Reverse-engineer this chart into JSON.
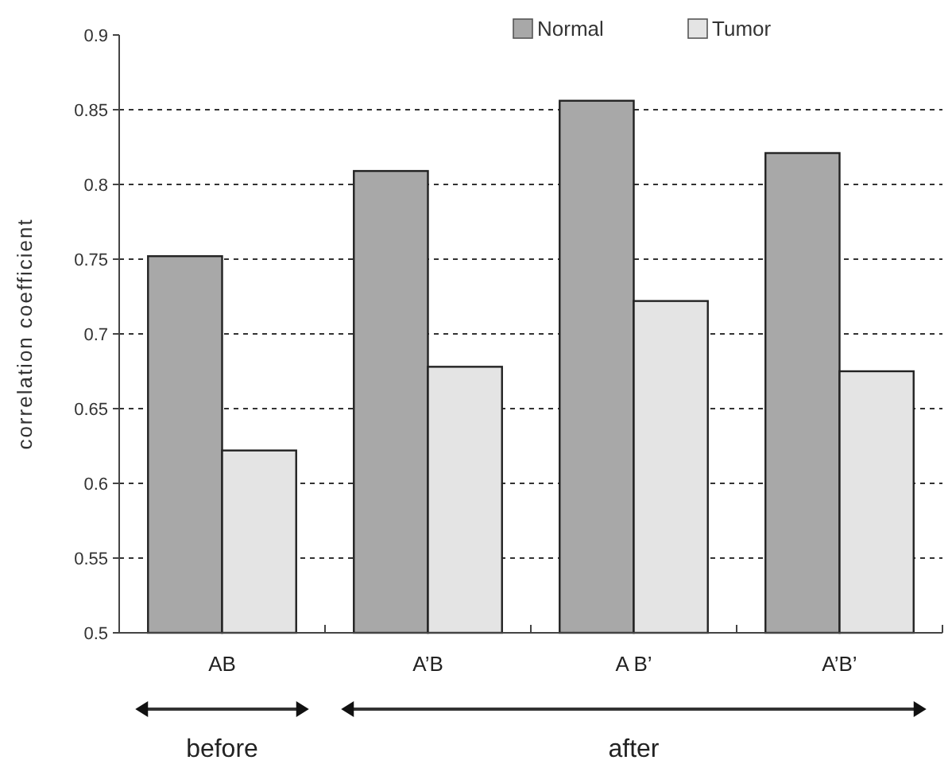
{
  "chart_data": {
    "type": "bar",
    "ylabel": "correlation coefficient",
    "categories": [
      "AB",
      "A’B",
      "A B’",
      "A’B’"
    ],
    "series": [
      {
        "name": "Normal",
        "color": "#a8a8a8",
        "values": [
          0.752,
          0.809,
          0.856,
          0.821
        ]
      },
      {
        "name": "Tumor",
        "color": "#e4e4e4",
        "values": [
          0.622,
          0.678,
          0.722,
          0.675
        ]
      }
    ],
    "ylim": [
      0.5,
      0.9
    ],
    "yticks": [
      0.5,
      0.55,
      0.6,
      0.65,
      0.7,
      0.75,
      0.8,
      0.85,
      0.9
    ],
    "grid": "y",
    "legend": "top right",
    "annotations": [
      "before",
      "after"
    ]
  }
}
